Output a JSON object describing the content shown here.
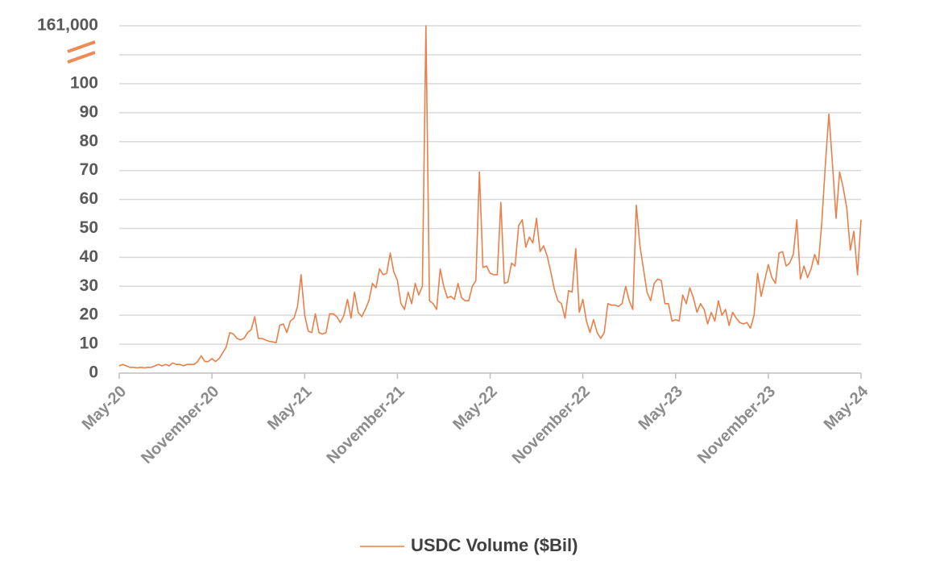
{
  "chart_data": {
    "type": "line",
    "categories": [
      "May-20",
      null,
      null,
      null,
      null,
      null,
      null,
      null,
      null,
      null,
      null,
      null,
      null,
      null,
      null,
      null,
      null,
      null,
      null,
      null,
      null,
      null,
      null,
      null,
      null,
      null,
      "November-20",
      null,
      null,
      null,
      null,
      null,
      null,
      null,
      null,
      null,
      null,
      null,
      null,
      null,
      null,
      null,
      null,
      null,
      null,
      null,
      null,
      null,
      null,
      null,
      null,
      null,
      "May-21",
      null,
      null,
      null,
      null,
      null,
      null,
      null,
      null,
      null,
      null,
      null,
      null,
      null,
      null,
      null,
      null,
      null,
      null,
      null,
      null,
      null,
      null,
      null,
      null,
      null,
      "November-21",
      null,
      null,
      null,
      null,
      null,
      null,
      null,
      null,
      null,
      null,
      null,
      null,
      null,
      null,
      null,
      null,
      null,
      null,
      null,
      null,
      null,
      null,
      null,
      null,
      null,
      "May-22",
      null,
      null,
      null,
      null,
      null,
      null,
      null,
      null,
      null,
      null,
      null,
      null,
      null,
      null,
      null,
      null,
      null,
      null,
      null,
      null,
      null,
      null,
      null,
      null,
      null,
      "November-22",
      null,
      null,
      null,
      null,
      null,
      null,
      null,
      null,
      null,
      null,
      null,
      null,
      null,
      null,
      null,
      null,
      null,
      null,
      null,
      null,
      null,
      null,
      null,
      null,
      null,
      "May-23",
      null,
      null,
      null,
      null,
      null,
      null,
      null,
      null,
      null,
      null,
      null,
      null,
      null,
      null,
      null,
      null,
      null,
      null,
      null,
      null,
      null,
      null,
      null,
      null,
      null,
      "November-23",
      null,
      null,
      null,
      null,
      null,
      null,
      null,
      null,
      null,
      null,
      null,
      null,
      null,
      null,
      null,
      null,
      null,
      null,
      null,
      null,
      null,
      null,
      null,
      null,
      null,
      "May-24"
    ],
    "series": [
      {
        "name": "USDC Volume ($Bil)",
        "color": "#e8804a",
        "values": [
          2.5,
          3,
          2.5,
          2,
          2,
          1.8,
          2,
          1.8,
          2,
          2,
          2.5,
          3,
          2.5,
          3,
          2.5,
          3.5,
          3,
          3,
          2.5,
          3,
          3,
          3,
          4,
          6,
          4,
          4,
          5,
          4,
          5,
          7,
          9,
          14,
          13.5,
          12,
          11.5,
          12,
          14,
          15,
          19.5,
          12,
          12,
          11.5,
          11,
          10.8,
          10.5,
          16.5,
          17,
          14,
          18,
          19,
          23,
          34,
          20,
          14.5,
          14,
          20.5,
          14,
          13.5,
          14,
          20.5,
          20.5,
          19.5,
          17.5,
          20,
          25.5,
          19,
          28,
          21,
          19.5,
          22,
          25,
          31,
          29.5,
          36,
          34,
          34.5,
          41.5,
          35,
          32,
          24,
          22,
          28,
          24,
          31,
          27,
          30,
          161000,
          25,
          24,
          22,
          36,
          30,
          26,
          26.5,
          25.5,
          31,
          26,
          25,
          25,
          30,
          32,
          69.5,
          36.5,
          37,
          34.5,
          34,
          34,
          59,
          31,
          31.5,
          38,
          37,
          51,
          53,
          43.5,
          47,
          45,
          53.5,
          42,
          44,
          40.5,
          35,
          29,
          25,
          24,
          19,
          28.5,
          28,
          43,
          21,
          25.5,
          18,
          14,
          18.5,
          14,
          12,
          14,
          24,
          23.5,
          23.5,
          23,
          24,
          30,
          25,
          22,
          58,
          44,
          36,
          28,
          25,
          31,
          32.5,
          32,
          24,
          24,
          18,
          18.5,
          18,
          27,
          24,
          29.5,
          26,
          21,
          24,
          22,
          17,
          21,
          18,
          25,
          20,
          22,
          16.5,
          21,
          19,
          17.5,
          17,
          17.5,
          15.5,
          20,
          34.5,
          26.5,
          32,
          37.5,
          33,
          31,
          41.5,
          42,
          37,
          38,
          41,
          53,
          32.5,
          37,
          33,
          36,
          41,
          37.5,
          52,
          72,
          89.5,
          72,
          53.5,
          69.5,
          64,
          57,
          42.5,
          49,
          34,
          53
        ]
      }
    ],
    "ylim": [
      0,
      161000
    ],
    "yticks": [
      0,
      10,
      20,
      30,
      40,
      50,
      60,
      70,
      80,
      90,
      100,
      {
        "value": 161000,
        "label": "161,000"
      }
    ],
    "ybreak": [
      110,
      161000
    ],
    "grid": true,
    "legend": "bottom"
  }
}
